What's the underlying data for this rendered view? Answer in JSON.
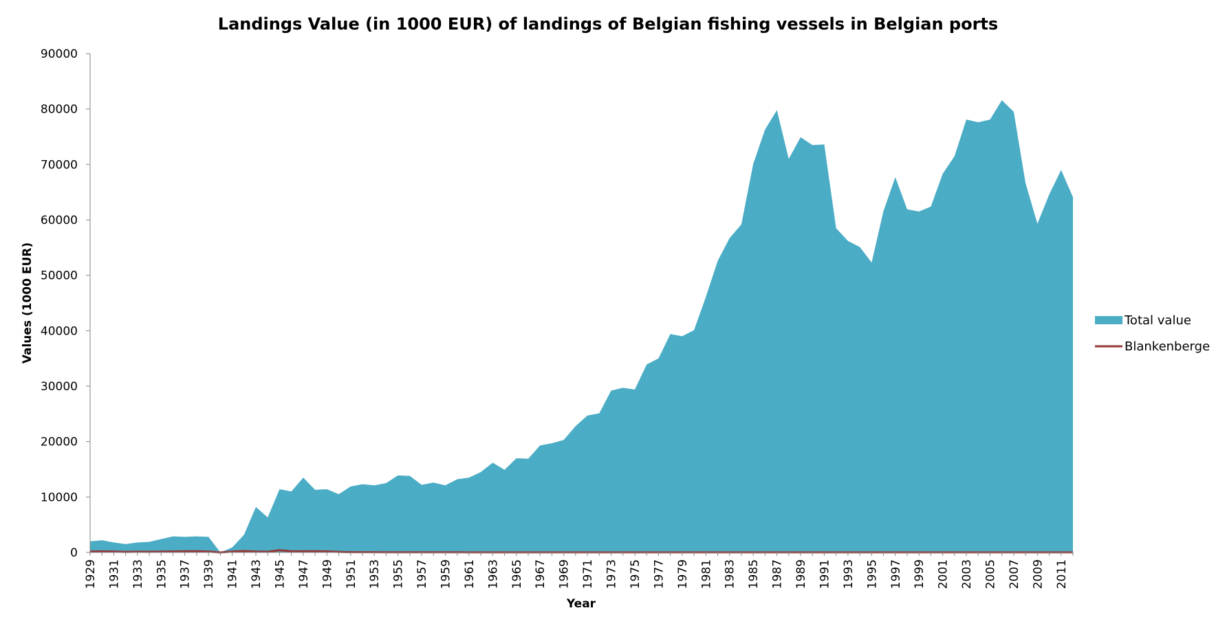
{
  "chart_data": {
    "type": "area",
    "title": "Landings Value (in 1000 EUR) of landings of Belgian fishing vessels in Belgian ports",
    "xlabel": "Year",
    "ylabel": "Values (1000 EUR)",
    "ylim": [
      0,
      90000
    ],
    "yticks": [
      0,
      10000,
      20000,
      30000,
      40000,
      50000,
      60000,
      70000,
      80000,
      90000
    ],
    "ytick_labels": [
      "0",
      "10000",
      "20000",
      "30000",
      "40000",
      "50000",
      "60000",
      "70000",
      "80000",
      "90000"
    ],
    "x": [
      1929,
      1930,
      1931,
      1932,
      1933,
      1934,
      1935,
      1936,
      1937,
      1938,
      1939,
      1940,
      1941,
      1942,
      1943,
      1944,
      1945,
      1946,
      1947,
      1948,
      1949,
      1950,
      1951,
      1952,
      1953,
      1954,
      1955,
      1956,
      1957,
      1958,
      1959,
      1960,
      1961,
      1962,
      1963,
      1964,
      1965,
      1966,
      1967,
      1968,
      1969,
      1970,
      1971,
      1972,
      1973,
      1974,
      1975,
      1976,
      1977,
      1978,
      1979,
      1980,
      1981,
      1982,
      1983,
      1984,
      1985,
      1986,
      1987,
      1988,
      1989,
      1990,
      1991,
      1992,
      1993,
      1994,
      1995,
      1996,
      1997,
      1998,
      1999,
      2000,
      2001,
      2002,
      2003,
      2004,
      2005,
      2006,
      2007,
      2008,
      2009,
      2010,
      2011,
      2012
    ],
    "xtick_labels": [
      "1929",
      "1931",
      "1933",
      "1935",
      "1937",
      "1939",
      "1941",
      "1943",
      "1945",
      "1947",
      "1949",
      "1951",
      "1953",
      "1955",
      "1957",
      "1959",
      "1961",
      "1963",
      "1965",
      "1967",
      "1969",
      "1971",
      "1973",
      "1975",
      "1977",
      "1979",
      "1981",
      "1983",
      "1985",
      "1987",
      "1989",
      "1991",
      "1993",
      "1995",
      "1997",
      "1999",
      "2001",
      "2003",
      "2005",
      "2007",
      "2009",
      "2011"
    ],
    "grid": false,
    "legend": "right",
    "series": [
      {
        "name": "Total value",
        "kind": "area",
        "color": "#4bacc6",
        "values": [
          2000,
          2200,
          1800,
          1500,
          1800,
          1900,
          2400,
          2900,
          2800,
          2900,
          2800,
          0,
          900,
          3200,
          8200,
          6300,
          11400,
          11000,
          13500,
          11300,
          11400,
          10500,
          11900,
          12300,
          12100,
          12500,
          13900,
          13800,
          12200,
          12600,
          12100,
          13200,
          13500,
          14500,
          16200,
          14900,
          17000,
          16900,
          19300,
          19700,
          20300,
          22800,
          24700,
          25100,
          29200,
          29700,
          29400,
          33900,
          35000,
          39400,
          39000,
          40100,
          46100,
          52600,
          56700,
          59200,
          70100,
          76300,
          79800,
          71000,
          74900,
          73500,
          73600,
          58500,
          56200,
          55100,
          52300,
          61600,
          67700,
          61900,
          61500,
          62400,
          68300,
          71500,
          78100,
          77600,
          78100,
          81600,
          79500,
          66600,
          59300,
          64600,
          69000,
          64100
        ]
      },
      {
        "name": "Blankenberge",
        "kind": "line",
        "color": "#953735",
        "values": [
          150,
          180,
          160,
          100,
          120,
          110,
          140,
          170,
          200,
          220,
          150,
          0,
          150,
          250,
          150,
          120,
          400,
          200,
          200,
          220,
          180,
          100,
          50,
          40,
          40,
          35,
          30,
          30,
          25,
          25,
          25,
          25,
          20,
          20,
          20,
          20,
          20,
          20,
          20,
          20,
          20,
          20,
          20,
          20,
          20,
          20,
          20,
          20,
          20,
          20,
          20,
          20,
          20,
          20,
          20,
          20,
          20,
          20,
          20,
          20,
          20,
          20,
          20,
          20,
          20,
          20,
          20,
          20,
          20,
          20,
          20,
          20,
          20,
          20,
          20,
          20,
          20,
          20,
          20,
          20,
          20,
          20,
          20,
          20
        ]
      }
    ]
  }
}
